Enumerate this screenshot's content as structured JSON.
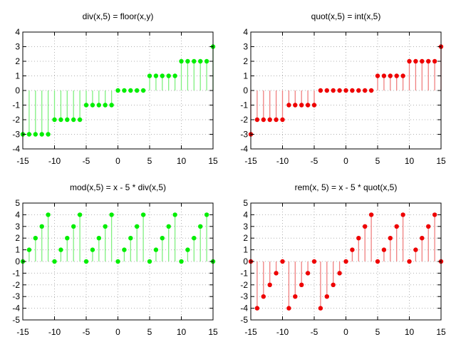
{
  "colors": {
    "green": "#00ee00",
    "green_stem": "#80f080",
    "red": "#ee0000",
    "red_stem": "#f08080",
    "grid": "#b0b0b0",
    "axis": "#000000"
  },
  "chart_data": [
    {
      "type": "scatter",
      "style": "stem",
      "title": "div(x,5) = floor(x,y)",
      "xlim": [
        -15,
        15
      ],
      "ylim": [
        -4,
        4
      ],
      "xticks": [
        -15,
        -10,
        -5,
        0,
        5,
        10,
        15
      ],
      "yticks": [
        -4,
        -3,
        -2,
        -1,
        0,
        1,
        2,
        3,
        4
      ],
      "grid": true,
      "color": "green",
      "x": [
        -15,
        -14,
        -13,
        -12,
        -11,
        -10,
        -9,
        -8,
        -7,
        -6,
        -5,
        -4,
        -3,
        -2,
        -1,
        0,
        1,
        2,
        3,
        4,
        5,
        6,
        7,
        8,
        9,
        10,
        11,
        12,
        13,
        14,
        15
      ],
      "y": [
        -3,
        -3,
        -3,
        -3,
        -3,
        -2,
        -2,
        -2,
        -2,
        -2,
        -1,
        -1,
        -1,
        -1,
        -1,
        0,
        0,
        0,
        0,
        0,
        1,
        1,
        1,
        1,
        1,
        2,
        2,
        2,
        2,
        2,
        3
      ]
    },
    {
      "type": "scatter",
      "style": "stem",
      "title": "quot(x,5) = int(x,5)",
      "xlim": [
        -15,
        15
      ],
      "ylim": [
        -4,
        4
      ],
      "xticks": [
        -15,
        -10,
        -5,
        0,
        5,
        10,
        15
      ],
      "yticks": [
        -4,
        -3,
        -2,
        -1,
        0,
        1,
        2,
        3,
        4
      ],
      "grid": true,
      "color": "red",
      "x": [
        -15,
        -14,
        -13,
        -12,
        -11,
        -10,
        -9,
        -8,
        -7,
        -6,
        -5,
        -4,
        -3,
        -2,
        -1,
        0,
        1,
        2,
        3,
        4,
        5,
        6,
        7,
        8,
        9,
        10,
        11,
        12,
        13,
        14,
        15
      ],
      "y": [
        -3,
        -2,
        -2,
        -2,
        -2,
        -2,
        -1,
        -1,
        -1,
        -1,
        -1,
        0,
        0,
        0,
        0,
        0,
        0,
        0,
        0,
        0,
        1,
        1,
        1,
        1,
        1,
        2,
        2,
        2,
        2,
        2,
        3
      ]
    },
    {
      "type": "scatter",
      "style": "stem",
      "title": "mod(x,5) = x - 5 * div(x,5)",
      "xlim": [
        -15,
        15
      ],
      "ylim": [
        -5,
        5
      ],
      "xticks": [
        -15,
        -10,
        -5,
        0,
        5,
        10,
        15
      ],
      "yticks": [
        -5,
        -4,
        -3,
        -2,
        -1,
        0,
        1,
        2,
        3,
        4,
        5
      ],
      "grid": true,
      "color": "green",
      "x": [
        -15,
        -14,
        -13,
        -12,
        -11,
        -10,
        -9,
        -8,
        -7,
        -6,
        -5,
        -4,
        -3,
        -2,
        -1,
        0,
        1,
        2,
        3,
        4,
        5,
        6,
        7,
        8,
        9,
        10,
        11,
        12,
        13,
        14,
        15
      ],
      "y": [
        0,
        1,
        2,
        3,
        4,
        0,
        1,
        2,
        3,
        4,
        0,
        1,
        2,
        3,
        4,
        0,
        1,
        2,
        3,
        4,
        0,
        1,
        2,
        3,
        4,
        0,
        1,
        2,
        3,
        4,
        0
      ]
    },
    {
      "type": "scatter",
      "style": "stem",
      "title": "rem(x, 5) = x - 5 * quot(x,5)",
      "xlim": [
        -15,
        15
      ],
      "ylim": [
        -5,
        5
      ],
      "xticks": [
        -15,
        -10,
        -5,
        0,
        5,
        10,
        15
      ],
      "yticks": [
        -5,
        -4,
        -3,
        -2,
        -1,
        0,
        1,
        2,
        3,
        4,
        5
      ],
      "grid": true,
      "color": "red",
      "x": [
        -15,
        -14,
        -13,
        -12,
        -11,
        -10,
        -9,
        -8,
        -7,
        -6,
        -5,
        -4,
        -3,
        -2,
        -1,
        0,
        1,
        2,
        3,
        4,
        5,
        6,
        7,
        8,
        9,
        10,
        11,
        12,
        13,
        14,
        15
      ],
      "y": [
        0,
        -4,
        -3,
        -2,
        -1,
        0,
        -4,
        -3,
        -2,
        -1,
        0,
        -4,
        -3,
        -2,
        -1,
        0,
        1,
        2,
        3,
        4,
        0,
        1,
        2,
        3,
        4,
        0,
        1,
        2,
        3,
        4,
        0
      ]
    }
  ]
}
